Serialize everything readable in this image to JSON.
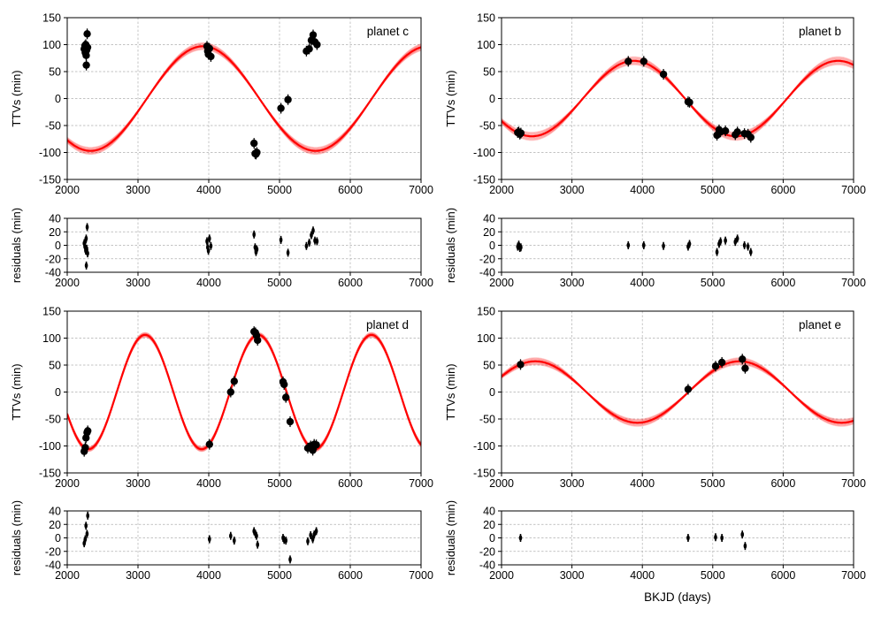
{
  "colors": {
    "model": "#ff0000",
    "points": "#000000",
    "grid": "#b0b0b0",
    "axes": "#000000"
  },
  "shared_xlabel": "BKJD (days)",
  "chart_data": [
    {
      "id": "c",
      "type": "scatter",
      "title": "planet c",
      "ylabel": "TTVs (min)",
      "res_ylabel": "residuals (min)",
      "xlabel": "",
      "xlim": [
        2000,
        7000
      ],
      "ylim": [
        -150,
        150
      ],
      "res_ylim": [
        -40,
        40
      ],
      "xticks": [
        2000,
        3000,
        4000,
        5000,
        6000,
        7000
      ],
      "yticks": [
        -150,
        -100,
        -50,
        0,
        50,
        100,
        150
      ],
      "res_yticks": [
        -40,
        -20,
        0,
        20,
        40
      ],
      "grid": true,
      "model": {
        "amplitude": 97,
        "period": 3180,
        "peak_x": 3920,
        "offset": 0,
        "band": 6
      },
      "points": [
        {
          "x": 2240,
          "y": 92
        },
        {
          "x": 2250,
          "y": 98
        },
        {
          "x": 2255,
          "y": 85
        },
        {
          "x": 2262,
          "y": 100
        },
        {
          "x": 2268,
          "y": 80
        },
        {
          "x": 2270,
          "y": 62
        },
        {
          "x": 2275,
          "y": 90
        },
        {
          "x": 2282,
          "y": 120
        },
        {
          "x": 2288,
          "y": 95
        },
        {
          "x": 3975,
          "y": 97
        },
        {
          "x": 3985,
          "y": 88
        },
        {
          "x": 3995,
          "y": 82
        },
        {
          "x": 4010,
          "y": 93
        },
        {
          "x": 4030,
          "y": 78
        },
        {
          "x": 4640,
          "y": -83
        },
        {
          "x": 4655,
          "y": -102
        },
        {
          "x": 4668,
          "y": -103
        },
        {
          "x": 4680,
          "y": -100
        },
        {
          "x": 5020,
          "y": -18
        },
        {
          "x": 5120,
          "y": -2
        },
        {
          "x": 5380,
          "y": 88
        },
        {
          "x": 5420,
          "y": 92
        },
        {
          "x": 5450,
          "y": 108
        },
        {
          "x": 5475,
          "y": 118
        },
        {
          "x": 5500,
          "y": 105
        },
        {
          "x": 5530,
          "y": 100
        }
      ],
      "residuals": [
        {
          "x": 2240,
          "y": 3
        },
        {
          "x": 2250,
          "y": -2
        },
        {
          "x": 2255,
          "y": 6
        },
        {
          "x": 2262,
          "y": -8
        },
        {
          "x": 2268,
          "y": 10
        },
        {
          "x": 2270,
          "y": -30
        },
        {
          "x": 2275,
          "y": -5
        },
        {
          "x": 2282,
          "y": 27
        },
        {
          "x": 2288,
          "y": -12
        },
        {
          "x": 3975,
          "y": 6
        },
        {
          "x": 3985,
          "y": -3
        },
        {
          "x": 3995,
          "y": -8
        },
        {
          "x": 4010,
          "y": 10
        },
        {
          "x": 4030,
          "y": -1
        },
        {
          "x": 4640,
          "y": 16
        },
        {
          "x": 4655,
          "y": -3
        },
        {
          "x": 4668,
          "y": -10
        },
        {
          "x": 4680,
          "y": -6
        },
        {
          "x": 5020,
          "y": 8
        },
        {
          "x": 5120,
          "y": -11
        },
        {
          "x": 5380,
          "y": -1
        },
        {
          "x": 5420,
          "y": 4
        },
        {
          "x": 5450,
          "y": 15
        },
        {
          "x": 5475,
          "y": 22
        },
        {
          "x": 5500,
          "y": 7
        },
        {
          "x": 5530,
          "y": 6
        }
      ]
    },
    {
      "id": "b",
      "type": "scatter",
      "title": "planet b",
      "ylabel": "TTVs (min)",
      "res_ylabel": "residuals (min)",
      "xlabel": "",
      "xlim": [
        2000,
        7000
      ],
      "ylim": [
        -150,
        150
      ],
      "res_ylim": [
        -40,
        40
      ],
      "xticks": [
        2000,
        3000,
        4000,
        5000,
        6000,
        7000
      ],
      "yticks": [
        -150,
        -100,
        -50,
        0,
        50,
        100,
        150
      ],
      "res_yticks": [
        -40,
        -20,
        0,
        20,
        40
      ],
      "grid": true,
      "model": {
        "amplitude": 70,
        "period": 2900,
        "peak_x": 3880,
        "offset": 0,
        "band": 7
      },
      "points": [
        {
          "x": 2230,
          "y": -63
        },
        {
          "x": 2245,
          "y": -62
        },
        {
          "x": 2260,
          "y": -66
        },
        {
          "x": 2275,
          "y": -64
        },
        {
          "x": 3800,
          "y": 69
        },
        {
          "x": 4020,
          "y": 69
        },
        {
          "x": 4300,
          "y": 45
        },
        {
          "x": 4650,
          "y": -6
        },
        {
          "x": 4670,
          "y": -7
        },
        {
          "x": 5060,
          "y": -68
        },
        {
          "x": 5090,
          "y": -58
        },
        {
          "x": 5110,
          "y": -62
        },
        {
          "x": 5180,
          "y": -60
        },
        {
          "x": 5320,
          "y": -67
        },
        {
          "x": 5350,
          "y": -62
        },
        {
          "x": 5450,
          "y": -65
        },
        {
          "x": 5500,
          "y": -66
        },
        {
          "x": 5540,
          "y": -72
        }
      ],
      "residuals": [
        {
          "x": 2230,
          "y": -2
        },
        {
          "x": 2245,
          "y": 1
        },
        {
          "x": 2260,
          "y": -4
        },
        {
          "x": 2275,
          "y": -3
        },
        {
          "x": 3800,
          "y": 0
        },
        {
          "x": 4020,
          "y": 0
        },
        {
          "x": 4300,
          "y": -1
        },
        {
          "x": 4650,
          "y": -2
        },
        {
          "x": 4670,
          "y": 2
        },
        {
          "x": 5060,
          "y": -10
        },
        {
          "x": 5090,
          "y": 2
        },
        {
          "x": 5110,
          "y": 6
        },
        {
          "x": 5180,
          "y": 7
        },
        {
          "x": 5320,
          "y": 5
        },
        {
          "x": 5350,
          "y": 10
        },
        {
          "x": 5450,
          "y": 0
        },
        {
          "x": 5500,
          "y": -2
        },
        {
          "x": 5540,
          "y": -10
        }
      ]
    },
    {
      "id": "d",
      "type": "scatter",
      "title": "planet d",
      "ylabel": "TTVs (min)",
      "res_ylabel": "residuals (min)",
      "xlabel": "",
      "xlim": [
        2000,
        7000
      ],
      "ylim": [
        -150,
        150
      ],
      "res_ylim": [
        -40,
        40
      ],
      "xticks": [
        2000,
        3000,
        4000,
        5000,
        6000,
        7000
      ],
      "yticks": [
        -150,
        -100,
        -50,
        0,
        50,
        100,
        150
      ],
      "res_yticks": [
        -40,
        -20,
        0,
        20,
        40
      ],
      "grid": true,
      "model": {
        "amplitude": 106,
        "period": 1600,
        "peak_x": 3100,
        "offset": 0,
        "band": 4
      },
      "points": [
        {
          "x": 2240,
          "y": -110
        },
        {
          "x": 2255,
          "y": -103
        },
        {
          "x": 2265,
          "y": -85
        },
        {
          "x": 2280,
          "y": -75
        },
        {
          "x": 2290,
          "y": -72
        },
        {
          "x": 4010,
          "y": -97
        },
        {
          "x": 4310,
          "y": 0
        },
        {
          "x": 4360,
          "y": 20
        },
        {
          "x": 4640,
          "y": 112
        },
        {
          "x": 4660,
          "y": 110
        },
        {
          "x": 4675,
          "y": 105
        },
        {
          "x": 4690,
          "y": 96
        },
        {
          "x": 5050,
          "y": 19
        },
        {
          "x": 5065,
          "y": 14
        },
        {
          "x": 5090,
          "y": -10
        },
        {
          "x": 5150,
          "y": -55
        },
        {
          "x": 5400,
          "y": -104
        },
        {
          "x": 5440,
          "y": -100
        },
        {
          "x": 5470,
          "y": -108
        },
        {
          "x": 5490,
          "y": -97
        },
        {
          "x": 5520,
          "y": -98
        }
      ],
      "residuals": [
        {
          "x": 2240,
          "y": -8
        },
        {
          "x": 2255,
          "y": -2
        },
        {
          "x": 2265,
          "y": 18
        },
        {
          "x": 2280,
          "y": 6
        },
        {
          "x": 2290,
          "y": 33
        },
        {
          "x": 4010,
          "y": -2
        },
        {
          "x": 4310,
          "y": 3
        },
        {
          "x": 4360,
          "y": -4
        },
        {
          "x": 4640,
          "y": 10
        },
        {
          "x": 4660,
          "y": 6
        },
        {
          "x": 4675,
          "y": 3
        },
        {
          "x": 4690,
          "y": -10
        },
        {
          "x": 5050,
          "y": 0
        },
        {
          "x": 5065,
          "y": -3
        },
        {
          "x": 5090,
          "y": -4
        },
        {
          "x": 5150,
          "y": -32
        },
        {
          "x": 5400,
          "y": -5
        },
        {
          "x": 5440,
          "y": 4
        },
        {
          "x": 5470,
          "y": -2
        },
        {
          "x": 5490,
          "y": 5
        },
        {
          "x": 5520,
          "y": 10
        }
      ]
    },
    {
      "id": "e",
      "type": "scatter",
      "title": "planet e",
      "ylabel": "TTVs (min)",
      "res_ylabel": "residuals (min)",
      "xlabel": "BKJD (days)",
      "xlim": [
        2000,
        7000
      ],
      "ylim": [
        -150,
        150
      ],
      "res_ylim": [
        -40,
        40
      ],
      "xticks": [
        2000,
        3000,
        4000,
        5000,
        6000,
        7000
      ],
      "yticks": [
        -150,
        -100,
        -50,
        0,
        50,
        100,
        150
      ],
      "res_yticks": [
        -40,
        -20,
        0,
        20,
        40
      ],
      "grid": true,
      "model": {
        "amplitude": 57,
        "period": 2900,
        "peak_x": 5380,
        "offset": 0,
        "band": 6
      },
      "points": [
        {
          "x": 2270,
          "y": 51
        },
        {
          "x": 4650,
          "y": 5
        },
        {
          "x": 5040,
          "y": 48
        },
        {
          "x": 5130,
          "y": 55
        },
        {
          "x": 5420,
          "y": 61
        },
        {
          "x": 5460,
          "y": 44
        }
      ],
      "residuals": [
        {
          "x": 2270,
          "y": 0
        },
        {
          "x": 4650,
          "y": 0
        },
        {
          "x": 5040,
          "y": 1
        },
        {
          "x": 5130,
          "y": 0
        },
        {
          "x": 5420,
          "y": 5
        },
        {
          "x": 5460,
          "y": -12
        }
      ]
    }
  ]
}
